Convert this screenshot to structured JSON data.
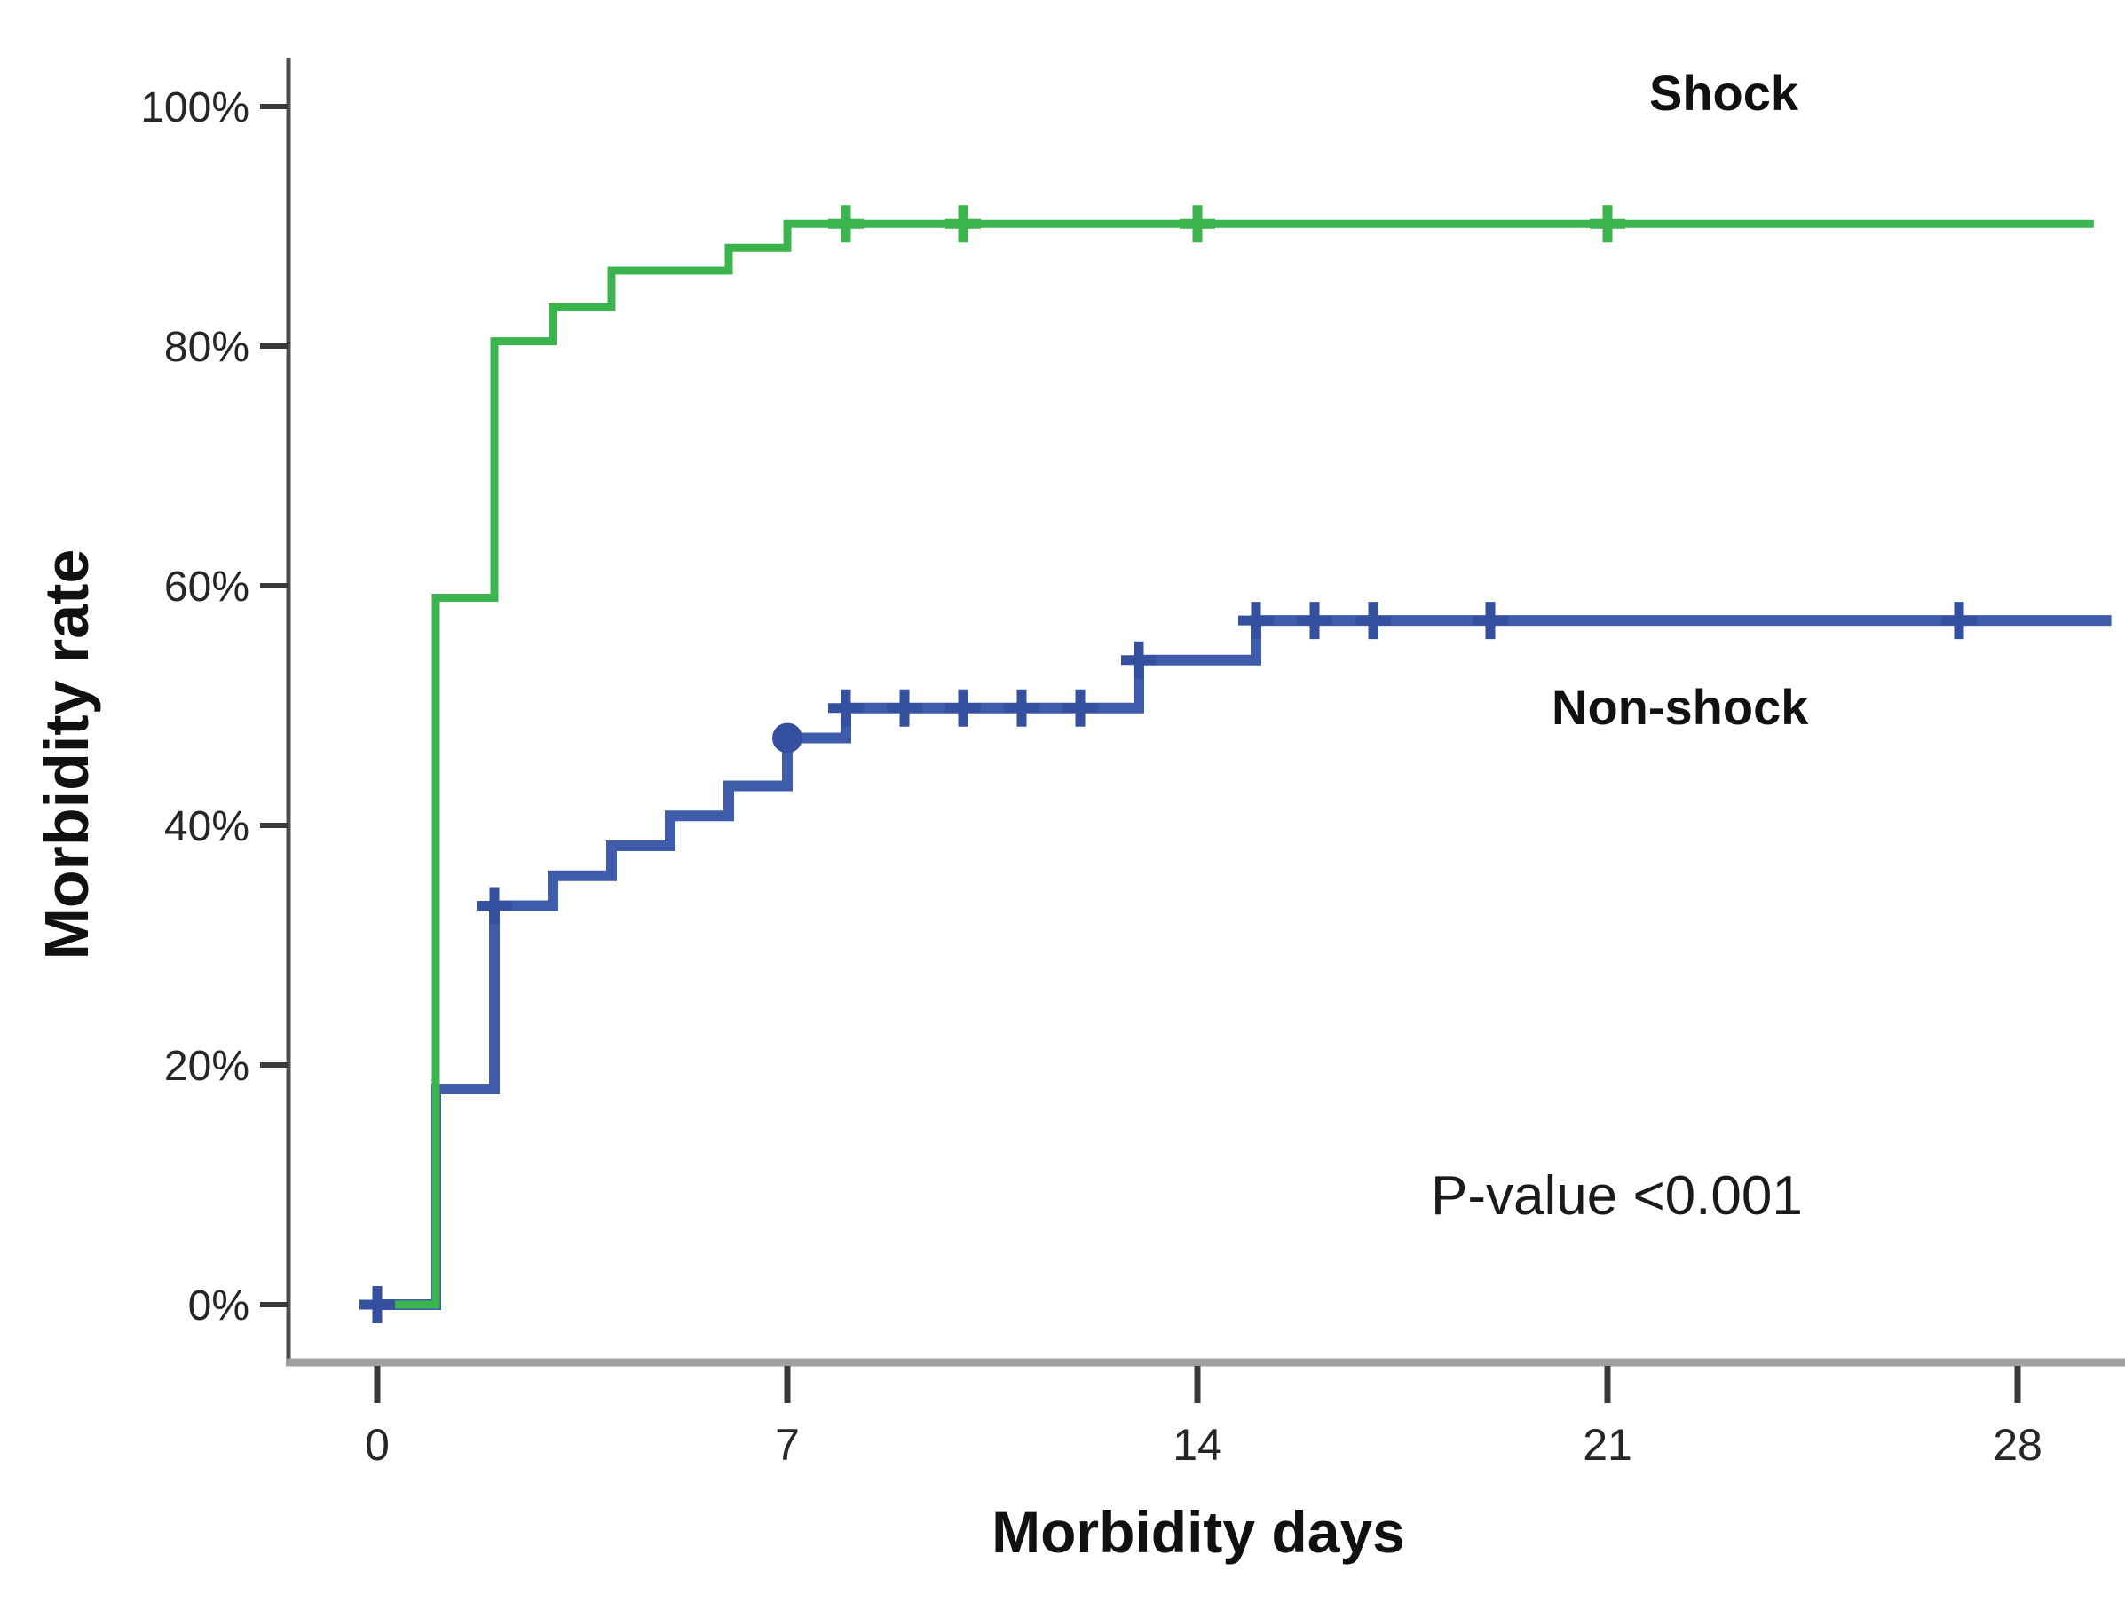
{
  "labels": {
    "shock": "Shock",
    "non_shock": "Non-shock",
    "p_value": "P-value <0.001"
  },
  "axes": {
    "x_title": "Morbidity days",
    "y_title": "Morbidity rate"
  },
  "colors": {
    "shock_line": "#3CB44E",
    "non_shock_line": "#3F5CAB",
    "non_shock_marker": "#35509E",
    "y_axis_line": "#4d4d4d",
    "x_axis_line": "#a0a0a0",
    "tick_mark": "#3a3a3a",
    "tick_text": "#262626"
  },
  "chart_data": {
    "type": "line",
    "subtype": "kaplan-meier-step",
    "title": "",
    "xlabel": "Morbidity days",
    "ylabel": "Morbidity rate",
    "xlim": [
      -1.5,
      29.8
    ],
    "ylim": [
      -5,
      106
    ],
    "grid": false,
    "x_ticks": [
      {
        "v": 0,
        "label": "0"
      },
      {
        "v": 7,
        "label": "7"
      },
      {
        "v": 14,
        "label": "14"
      },
      {
        "v": 21,
        "label": "21"
      },
      {
        "v": 28,
        "label": "28"
      }
    ],
    "y_ticks": [
      {
        "v": 0,
        "label": "0%"
      },
      {
        "v": 20,
        "label": "20%"
      },
      {
        "v": 40,
        "label": "40%"
      },
      {
        "v": 60,
        "label": "60%"
      },
      {
        "v": 80,
        "label": "80%"
      },
      {
        "v": 100,
        "label": "100%"
      }
    ],
    "series": [
      {
        "name": "Non-shock",
        "color": "#3F5CAB",
        "marker_color": "#35509E",
        "line_width": 12,
        "points": [
          [
            0,
            0
          ],
          [
            1,
            0
          ],
          [
            1,
            18
          ],
          [
            2,
            18
          ],
          [
            2,
            33.3
          ],
          [
            3,
            33.3
          ],
          [
            3,
            35.8
          ],
          [
            4,
            35.8
          ],
          [
            4,
            38.3
          ],
          [
            5,
            38.3
          ],
          [
            5,
            40.8
          ],
          [
            6,
            40.8
          ],
          [
            6,
            43.3
          ],
          [
            7,
            43.3
          ],
          [
            7,
            47.3
          ],
          [
            8,
            47.3
          ],
          [
            8,
            49.8
          ],
          [
            13,
            49.8
          ],
          [
            13,
            53.8
          ],
          [
            15,
            53.8
          ],
          [
            15,
            57.1
          ],
          [
            29.6,
            57.1
          ]
        ],
        "censor_marks": [
          [
            0,
            0
          ],
          [
            2,
            33.3
          ],
          [
            8,
            49.8
          ],
          [
            9,
            49.8
          ],
          [
            10,
            49.8
          ],
          [
            11,
            49.8
          ],
          [
            12,
            49.8
          ],
          [
            13,
            53.8
          ],
          [
            15,
            57.1
          ],
          [
            16,
            57.1
          ],
          [
            17,
            57.1
          ],
          [
            19,
            57.1
          ],
          [
            27,
            57.1
          ]
        ],
        "dot_markers": [
          [
            7,
            47.3
          ]
        ]
      },
      {
        "name": "Shock",
        "color": "#3CB44E",
        "marker_color": "#3CB44E",
        "line_width": 9,
        "points": [
          [
            0,
            0
          ],
          [
            1,
            0
          ],
          [
            1,
            59
          ],
          [
            2,
            59
          ],
          [
            2,
            80.4
          ],
          [
            3,
            80.4
          ],
          [
            3,
            83.3
          ],
          [
            4,
            83.3
          ],
          [
            4,
            86.3
          ],
          [
            6,
            86.3
          ],
          [
            6,
            88.2
          ],
          [
            7,
            88.2
          ],
          [
            7,
            90.2
          ],
          [
            29.3,
            90.2
          ]
        ],
        "censor_marks": [
          [
            8,
            90.2
          ],
          [
            10,
            90.2
          ],
          [
            14,
            90.2
          ],
          [
            21,
            90.2
          ]
        ],
        "dot_markers": []
      }
    ],
    "annotations": [
      {
        "text": "Shock",
        "x": 21.5,
        "y": 97,
        "bold": true
      },
      {
        "text": "Non-shock",
        "x": 21,
        "y": 47,
        "bold": true
      },
      {
        "text": "P-value <0.001",
        "x": 20.5,
        "y": 8.5,
        "bold": false
      }
    ],
    "legend_position": "inline-annotations"
  }
}
